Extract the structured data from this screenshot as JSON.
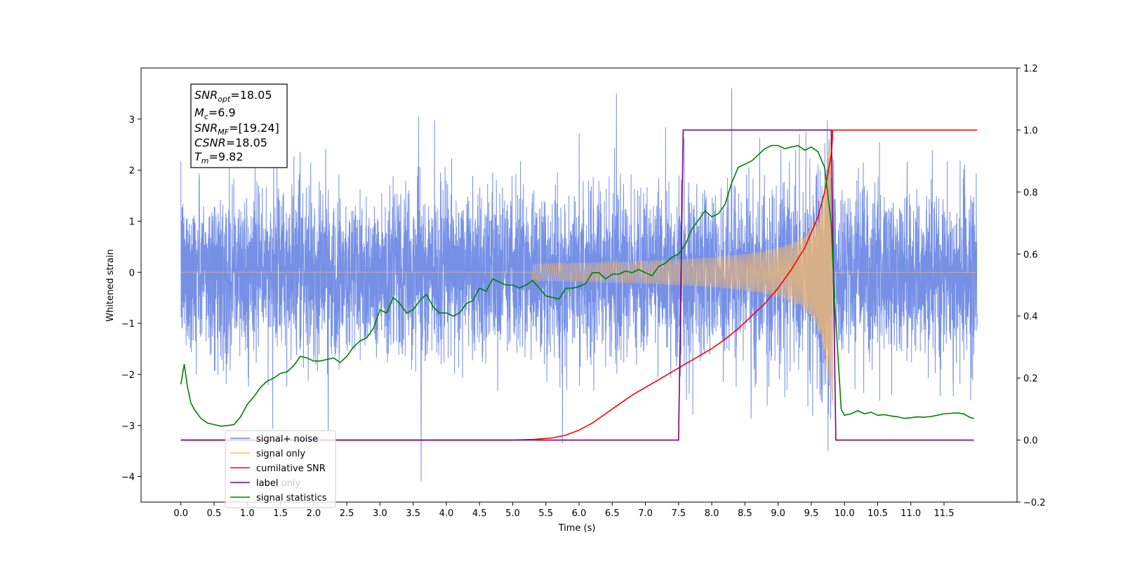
{
  "chart_data": {
    "type": "line",
    "title": "",
    "xlabel": "Time (s)",
    "ylabel": "Whitened strain",
    "y2label": "",
    "xlim": [
      -0.6,
      12.6
    ],
    "ylim": [
      -4.5,
      4.0
    ],
    "y2lim": [
      -0.2,
      1.2
    ],
    "x_ticks": [
      0.0,
      0.5,
      1.0,
      1.5,
      2.0,
      2.5,
      3.0,
      3.5,
      4.0,
      4.5,
      5.0,
      5.5,
      6.0,
      6.5,
      7.0,
      7.5,
      8.0,
      8.5,
      9.0,
      9.5,
      10.0,
      10.5,
      11.0,
      11.5
    ],
    "x_tick_labels": [
      "0.0",
      "0.5",
      "1.0",
      "1.5",
      "2.0",
      "2.5",
      "3.0",
      "3.5",
      "4.0",
      "4.5",
      "5.0",
      "5.5",
      "6.0",
      "6.5",
      "7.0",
      "7.5",
      "8.0",
      "8.5",
      "9.0",
      "9.5",
      "10.0",
      "10.5",
      "11.0",
      "11.5"
    ],
    "y_ticks": [
      3,
      2,
      1,
      0,
      -1,
      -2,
      -3,
      -4
    ],
    "y_tick_labels": [
      "3",
      "2",
      "1",
      "0",
      "−1",
      "−2",
      "−3",
      "−4"
    ],
    "y2_ticks": [
      1.2,
      1.0,
      0.8,
      0.6,
      0.4,
      0.2,
      0.0,
      -0.2
    ],
    "y2_tick_labels": [
      "1.2",
      "1.0",
      "0.8",
      "0.6",
      "0.4",
      "0.2",
      "0.0",
      "−0.2"
    ],
    "grid": false,
    "legend_placement": "lower-left",
    "series": [
      {
        "name": "signal+ noise",
        "axis": "left",
        "color": "#6a87e4",
        "description_values": {
          "t_start": 0.0,
          "t_end": 12.0,
          "noise_std": 1.0,
          "extremes": [
            [
              3.62,
              -4.1
            ],
            [
              8.3,
              3.6
            ],
            [
              5.75,
              -3.35
            ],
            [
              2.22,
              -3.2
            ]
          ]
        }
      },
      {
        "name": "signal only",
        "axis": "left",
        "color": "#f5b96b",
        "chirp": {
          "t_merger": 9.82,
          "amp_at_5_5": 0.02,
          "amp_at_7": 0.15,
          "amp_at_8": 0.28,
          "amp_at_9": 0.5,
          "amp_peak": 2.6,
          "t_end": 12.0
        }
      },
      {
        "name": "cumilative SNR",
        "axis": "right",
        "color": "#ff0000",
        "x": [
          0.0,
          5.0,
          5.3,
          5.6,
          5.8,
          6.0,
          6.2,
          6.4,
          6.6,
          6.8,
          7.0,
          7.2,
          7.4,
          7.6,
          7.8,
          8.0,
          8.2,
          8.4,
          8.6,
          8.8,
          9.0,
          9.2,
          9.4,
          9.6,
          9.7,
          9.8,
          9.82,
          9.82,
          12.0
        ],
        "y": [
          0.0,
          0.0,
          0.002,
          0.007,
          0.016,
          0.032,
          0.055,
          0.085,
          0.115,
          0.145,
          0.17,
          0.195,
          0.22,
          0.245,
          0.27,
          0.295,
          0.325,
          0.36,
          0.4,
          0.44,
          0.49,
          0.55,
          0.62,
          0.72,
          0.8,
          0.92,
          0.98,
          1.0,
          1.0
        ]
      },
      {
        "name": "label",
        "axis": "right",
        "color": "#800080",
        "x": [
          0.0,
          7.5,
          7.57,
          9.8,
          9.87,
          11.95
        ],
        "y": [
          0.0,
          0.0,
          1.0,
          1.0,
          0.0,
          0.0
        ]
      },
      {
        "name": "label only",
        "axis": "right",
        "color": "#ffffff",
        "x": [],
        "y": []
      },
      {
        "name": "signal statistics",
        "axis": "right",
        "color": "#008000",
        "x": [
          0.0,
          0.05,
          0.1,
          0.15,
          0.2,
          0.3,
          0.4,
          0.5,
          0.6,
          0.7,
          0.8,
          0.9,
          1.0,
          1.1,
          1.2,
          1.3,
          1.4,
          1.5,
          1.6,
          1.7,
          1.8,
          1.9,
          2.0,
          2.1,
          2.2,
          2.3,
          2.4,
          2.5,
          2.6,
          2.7,
          2.8,
          2.9,
          3.0,
          3.1,
          3.2,
          3.3,
          3.4,
          3.5,
          3.6,
          3.7,
          3.8,
          3.9,
          4.0,
          4.1,
          4.2,
          4.3,
          4.4,
          4.5,
          4.6,
          4.7,
          4.8,
          4.9,
          5.0,
          5.1,
          5.2,
          5.3,
          5.4,
          5.5,
          5.6,
          5.7,
          5.8,
          5.9,
          6.0,
          6.1,
          6.2,
          6.3,
          6.4,
          6.5,
          6.6,
          6.7,
          6.8,
          6.9,
          7.0,
          7.1,
          7.2,
          7.3,
          7.4,
          7.5,
          7.6,
          7.7,
          7.8,
          7.9,
          8.0,
          8.1,
          8.2,
          8.3,
          8.4,
          8.5,
          8.6,
          8.7,
          8.8,
          8.9,
          9.0,
          9.1,
          9.2,
          9.3,
          9.4,
          9.5,
          9.6,
          9.7,
          9.8,
          9.85,
          9.9,
          9.95,
          10.0,
          10.1,
          10.2,
          10.3,
          10.4,
          10.5,
          10.6,
          10.7,
          10.8,
          10.9,
          11.0,
          11.1,
          11.2,
          11.3,
          11.4,
          11.5,
          11.6,
          11.7,
          11.8,
          11.9,
          11.95
        ],
        "y": [
          0.18,
          0.245,
          0.17,
          0.12,
          0.1,
          0.07,
          0.055,
          0.05,
          0.045,
          0.047,
          0.05,
          0.075,
          0.115,
          0.14,
          0.17,
          0.19,
          0.2,
          0.215,
          0.22,
          0.24,
          0.27,
          0.265,
          0.255,
          0.255,
          0.26,
          0.265,
          0.25,
          0.27,
          0.3,
          0.32,
          0.33,
          0.36,
          0.42,
          0.41,
          0.46,
          0.44,
          0.41,
          0.42,
          0.45,
          0.47,
          0.43,
          0.41,
          0.41,
          0.4,
          0.41,
          0.44,
          0.45,
          0.49,
          0.48,
          0.52,
          0.51,
          0.5,
          0.5,
          0.49,
          0.5,
          0.515,
          0.49,
          0.465,
          0.46,
          0.455,
          0.49,
          0.49,
          0.495,
          0.505,
          0.54,
          0.54,
          0.52,
          0.535,
          0.535,
          0.545,
          0.54,
          0.55,
          0.54,
          0.53,
          0.56,
          0.57,
          0.59,
          0.6,
          0.63,
          0.68,
          0.71,
          0.74,
          0.72,
          0.73,
          0.76,
          0.83,
          0.88,
          0.89,
          0.9,
          0.92,
          0.94,
          0.95,
          0.95,
          0.94,
          0.945,
          0.95,
          0.935,
          0.945,
          0.93,
          0.88,
          0.7,
          0.45,
          0.28,
          0.1,
          0.08,
          0.085,
          0.095,
          0.085,
          0.09,
          0.08,
          0.082,
          0.078,
          0.075,
          0.07,
          0.072,
          0.075,
          0.074,
          0.076,
          0.08,
          0.085,
          0.086,
          0.088,
          0.084,
          0.072,
          0.07
        ]
      }
    ],
    "annotation": {
      "lines": [
        {
          "var": "SNR",
          "sub": "opt",
          "text": "=18.05"
        },
        {
          "var": "M",
          "sub": "c",
          "text": "=6.9"
        },
        {
          "var": "SNR",
          "sub": "MF",
          "text": "=[19.24]"
        },
        {
          "var": "CSNR",
          "sub": "",
          "text": "=18.05"
        },
        {
          "var": "T",
          "sub": "m",
          "text": "=9.82"
        }
      ]
    }
  }
}
